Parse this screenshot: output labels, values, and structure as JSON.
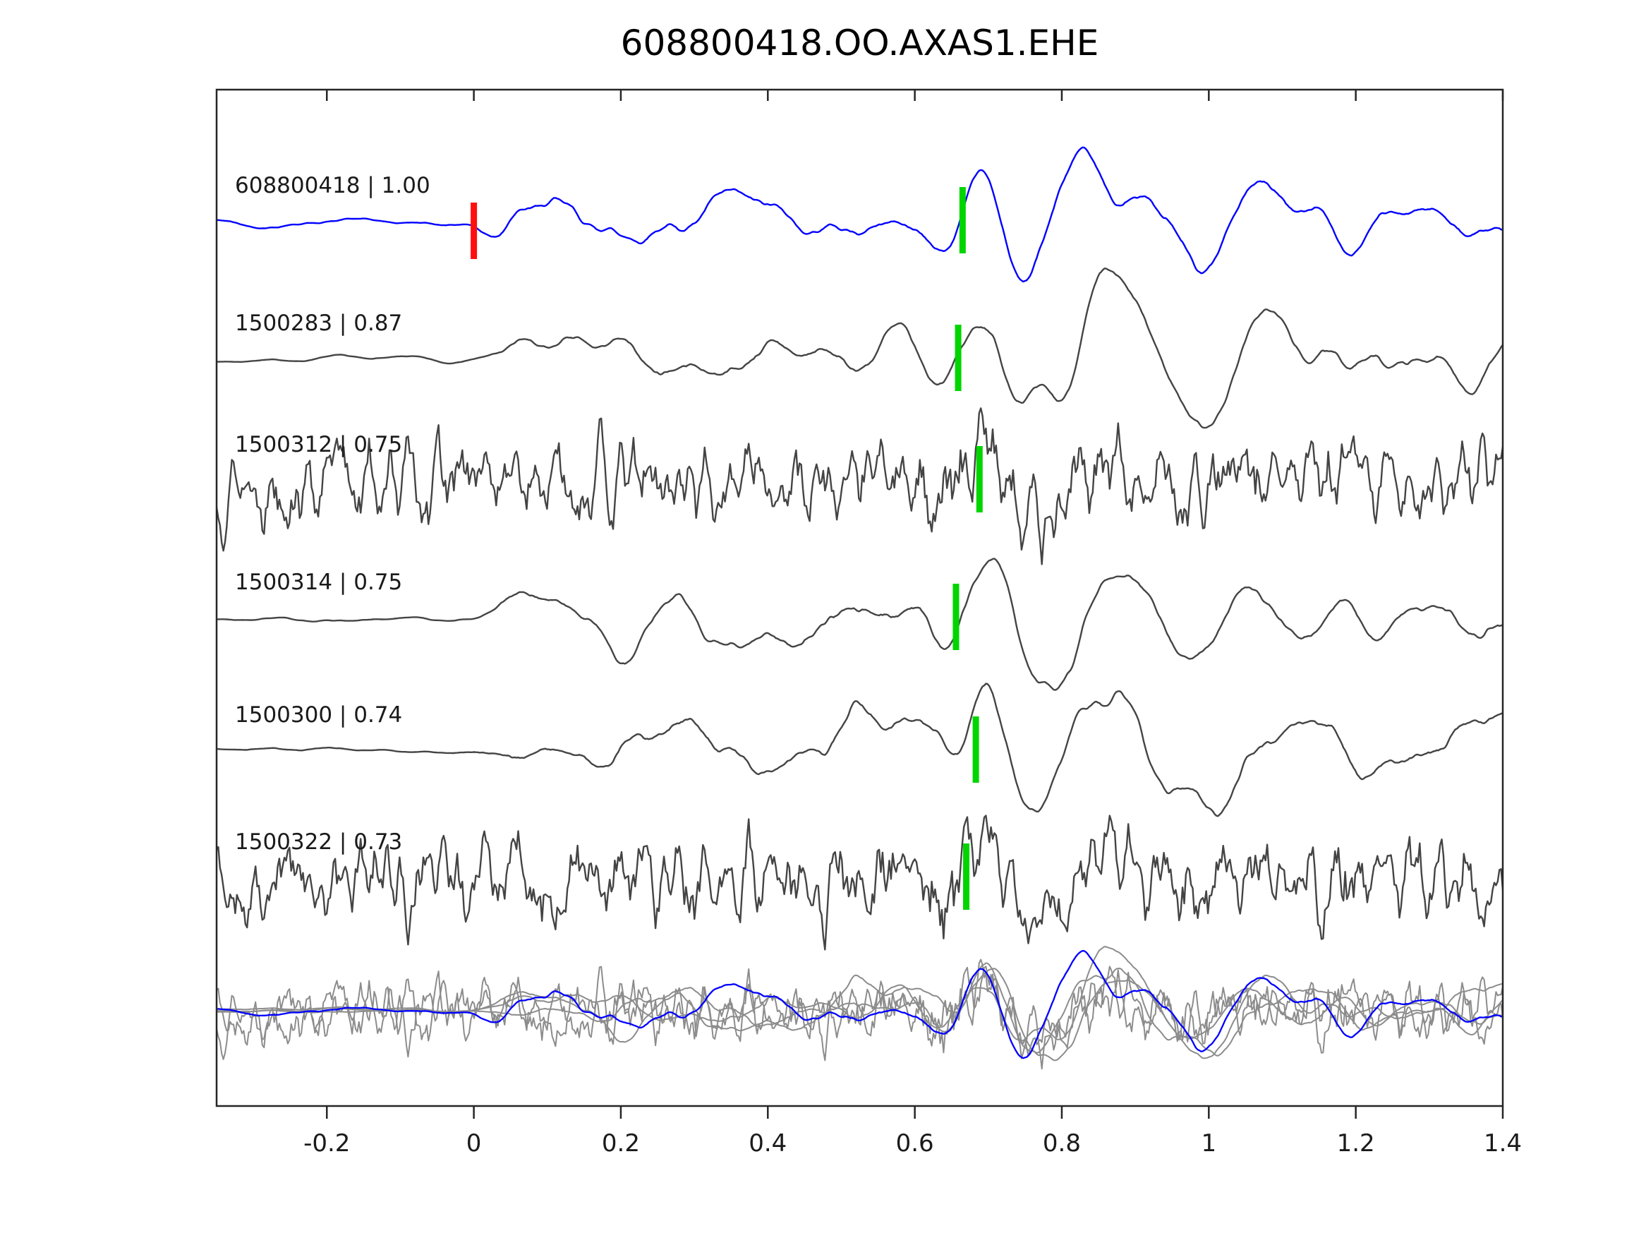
{
  "page": {
    "title": "608800418.OO.AXAS1.EHE"
  },
  "chart_data": {
    "type": "line",
    "title": "608800418.OO.AXAS1.EHE",
    "xlim": [
      -0.35,
      1.4
    ],
    "x_ticks": [
      {
        "v": -0.2,
        "label": "-0.2"
      },
      {
        "v": 0,
        "label": "0"
      },
      {
        "v": 0.2,
        "label": "0.2"
      },
      {
        "v": 0.4,
        "label": "0.4"
      },
      {
        "v": 0.6,
        "label": "0.6"
      },
      {
        "v": 0.8,
        "label": "0.8"
      },
      {
        "v": 1,
        "label": "1"
      },
      {
        "v": 1.2,
        "label": "1.2"
      },
      {
        "v": 1.4,
        "label": "1.4"
      }
    ],
    "colors": {
      "template": "#0000ff",
      "match": "#444444",
      "overlay_gray": "#8c8c8c",
      "pick": "#00d500",
      "origin": "#ff0f0f",
      "axis": "#262626",
      "text": "#1a1a1a"
    },
    "legend_note": "label format: event_id | correlation",
    "traces": [
      {
        "id": "608800418",
        "label": "608800418 | 1.00",
        "score": "1.00",
        "color_key": "template",
        "seed": 42,
        "style": "smooth",
        "amp": 16,
        "env": [
          [
            -0.35,
            0.28
          ],
          [
            -0.01,
            0.28
          ],
          [
            0.04,
            1.1
          ],
          [
            0.6,
            1.2
          ],
          [
            0.78,
            1.7
          ],
          [
            1.0,
            1.6
          ],
          [
            1.4,
            1.3
          ]
        ],
        "wavelets": [
          [
            0.695,
            0.033,
            85
          ],
          [
            0.745,
            0.04,
            -26
          ],
          [
            0.81,
            0.05,
            28
          ],
          [
            0.88,
            0.05,
            24
          ],
          [
            0.985,
            0.05,
            -30
          ]
        ],
        "pick_x": 0.665,
        "origin_x": 0
      },
      {
        "id": "1500283",
        "label": "1500283 | 0.87",
        "score": "0.87",
        "color_key": "match",
        "seed": 7,
        "style": "smooth",
        "amp": 24,
        "env": [
          [
            -0.35,
            0.12
          ],
          [
            0.0,
            0.12
          ],
          [
            0.06,
            0.8
          ],
          [
            0.3,
            1.0
          ],
          [
            0.65,
            1.1
          ],
          [
            1.4,
            1.0
          ]
        ],
        "wavelets": [
          [
            0.7,
            0.035,
            42
          ],
          [
            0.775,
            0.05,
            -58
          ],
          [
            0.865,
            0.05,
            30
          ],
          [
            1.0,
            0.055,
            -52
          ],
          [
            1.07,
            0.045,
            36
          ]
        ],
        "pick_x": 0.659
      },
      {
        "id": "1500312",
        "label": "1500312 | 0.75",
        "score": "0.75",
        "color_key": "match",
        "seed": 13,
        "style": "noisy",
        "amp": 30,
        "env": [
          [
            -0.35,
            1.0
          ],
          [
            0.6,
            1.0
          ],
          [
            0.66,
            1.25
          ],
          [
            0.73,
            1.05
          ],
          [
            1.4,
            1.0
          ]
        ],
        "wavelets": [
          [
            0.7,
            0.03,
            35
          ],
          [
            0.78,
            0.04,
            -35
          ]
        ],
        "pick_x": 0.688
      },
      {
        "id": "1500314",
        "label": "1500314 | 0.75",
        "score": "0.75",
        "color_key": "match",
        "seed": 21,
        "style": "smooth",
        "amp": 24,
        "env": [
          [
            -0.35,
            0.12
          ],
          [
            0.0,
            0.12
          ],
          [
            0.06,
            0.8
          ],
          [
            0.3,
            1.0
          ],
          [
            0.65,
            1.1
          ],
          [
            1.4,
            1.0
          ]
        ],
        "wavelets": [
          [
            0.705,
            0.04,
            40
          ],
          [
            0.78,
            0.05,
            -55
          ],
          [
            0.87,
            0.05,
            28
          ],
          [
            1.0,
            0.06,
            -50
          ],
          [
            1.08,
            0.05,
            30
          ]
        ],
        "pick_x": 0.656
      },
      {
        "id": "1500300",
        "label": "1500300 | 0.74",
        "score": "0.74",
        "color_key": "match",
        "seed": 33,
        "style": "smooth",
        "amp": 26,
        "env": [
          [
            -0.35,
            0.12
          ],
          [
            0.0,
            0.12
          ],
          [
            0.06,
            0.8
          ],
          [
            0.3,
            1.0
          ],
          [
            0.65,
            1.1
          ],
          [
            1.4,
            1.0
          ]
        ],
        "wavelets": [
          [
            0.7,
            0.035,
            45
          ],
          [
            0.77,
            0.05,
            -60
          ],
          [
            0.86,
            0.05,
            32
          ],
          [
            1.0,
            0.055,
            -48
          ],
          [
            1.07,
            0.05,
            30
          ]
        ],
        "pick_x": 0.683
      },
      {
        "id": "1500322",
        "label": "1500322 | 0.73",
        "score": "0.73",
        "color_key": "match",
        "seed": 55,
        "style": "noisy",
        "amp": 30,
        "env": [
          [
            -0.35,
            1.0
          ],
          [
            0.6,
            1.0
          ],
          [
            0.66,
            1.2
          ],
          [
            0.73,
            1.0
          ],
          [
            1.4,
            1.0
          ]
        ],
        "wavelets": [
          [
            0.7,
            0.03,
            30
          ],
          [
            0.78,
            0.045,
            -38
          ]
        ],
        "pick_x": 0.67
      }
    ],
    "overlay": {
      "gray_scale": 0.7,
      "blue_scale": 0.8,
      "gray_color_key": "overlay_gray"
    }
  }
}
